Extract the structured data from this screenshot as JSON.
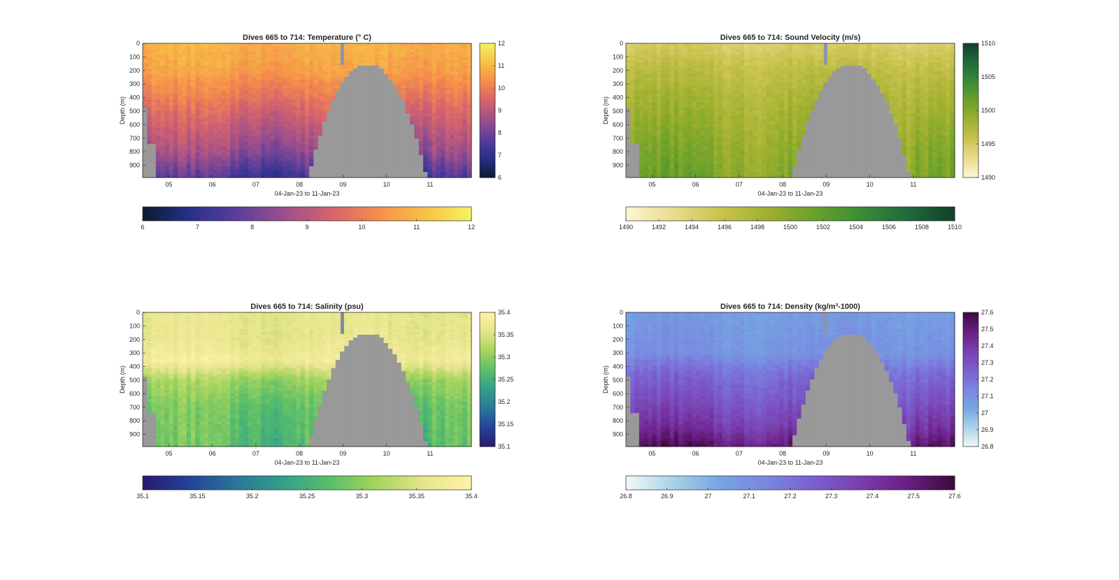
{
  "figure": {
    "background": "#ffffff",
    "bathymetry_color": "#999999"
  },
  "chart_data": [
    {
      "type": "heatmap",
      "variable": "temperature",
      "title": "Dives 665 to 714: Temperature (° C)",
      "xlabel": "04-Jan-23 to 11-Jan-23",
      "ylabel": "Depth (m)",
      "x_range_days": [
        4.4,
        11.95
      ],
      "x_ticks": [
        "05",
        "06",
        "07",
        "08",
        "09",
        "10",
        "11"
      ],
      "y_range_m": [
        0,
        990
      ],
      "y_ticks": [
        "0",
        "100",
        "200",
        "300",
        "400",
        "500",
        "600",
        "700",
        "800",
        "900"
      ],
      "colorbar_right": {
        "range": [
          6,
          12
        ],
        "ticks": [
          "6",
          "7",
          "8",
          "9",
          "10",
          "11",
          "12"
        ]
      },
      "colorbar_bottom": {
        "range": [
          6,
          12
        ],
        "ticks": [
          "6",
          "7",
          "8",
          "9",
          "10",
          "11",
          "12"
        ]
      },
      "colormap": [
        "#0a1c2e",
        "#28308a",
        "#5a3d9c",
        "#9c4f8c",
        "#d4626e",
        "#f58e4a",
        "#f7c046",
        "#f4f462"
      ],
      "profile": [
        {
          "depth": 0,
          "value": 10.9
        },
        {
          "depth": 200,
          "value": 10.6
        },
        {
          "depth": 400,
          "value": 9.9
        },
        {
          "depth": 600,
          "value": 9.2
        },
        {
          "depth": 800,
          "value": 8.5
        },
        {
          "depth": 990,
          "value": 7.4
        }
      ]
    },
    {
      "type": "heatmap",
      "variable": "sound_velocity",
      "title": "Dives 665 to 714: Sound Velocity (m/s)",
      "xlabel": "04-Jan-23 to 11-Jan-23",
      "ylabel": "Depth (m)",
      "x_range_days": [
        4.4,
        11.95
      ],
      "x_ticks": [
        "05",
        "06",
        "07",
        "08",
        "09",
        "10",
        "11"
      ],
      "y_range_m": [
        0,
        990
      ],
      "y_ticks": [
        "0",
        "100",
        "200",
        "300",
        "400",
        "500",
        "600",
        "700",
        "800",
        "900"
      ],
      "colorbar_right": {
        "range": [
          1490,
          1510
        ],
        "ticks": [
          "1490",
          "1495",
          "1500",
          "1505",
          "1510"
        ]
      },
      "colorbar_bottom": {
        "range": [
          1490,
          1510
        ],
        "ticks": [
          "1490",
          "1492",
          "1494",
          "1496",
          "1498",
          "1500",
          "1502",
          "1504",
          "1506",
          "1508",
          "1510"
        ]
      },
      "colormap": [
        "#fbf7d4",
        "#e9dc8e",
        "#c9c34e",
        "#9fb02e",
        "#6ba12a",
        "#3a8c35",
        "#1f6b3b",
        "#143f2a"
      ],
      "profile": [
        {
          "depth": 0,
          "value": 1494.5
        },
        {
          "depth": 200,
          "value": 1496.5
        },
        {
          "depth": 400,
          "value": 1497.8
        },
        {
          "depth": 600,
          "value": 1498.8
        },
        {
          "depth": 800,
          "value": 1499.8
        },
        {
          "depth": 990,
          "value": 1500.5
        }
      ]
    },
    {
      "type": "heatmap",
      "variable": "salinity",
      "title": "Dives 665 to 714: Salinity (psu)",
      "xlabel": "04-Jan-23 to 11-Jan-23",
      "ylabel": "Depth (m)",
      "x_range_days": [
        4.4,
        11.95
      ],
      "x_ticks": [
        "05",
        "06",
        "07",
        "08",
        "09",
        "10",
        "11"
      ],
      "y_range_m": [
        0,
        990
      ],
      "y_ticks": [
        "0",
        "100",
        "200",
        "300",
        "400",
        "500",
        "600",
        "700",
        "800",
        "900"
      ],
      "colorbar_right": {
        "range": [
          35.1,
          35.4
        ],
        "ticks": [
          "35.1",
          "35.15",
          "35.2",
          "35.25",
          "35.3",
          "35.35",
          "35.4"
        ]
      },
      "colorbar_bottom": {
        "range": [
          35.1,
          35.4
        ],
        "ticks": [
          "35.1",
          "35.15",
          "35.2",
          "35.25",
          "35.3",
          "35.35",
          "35.4"
        ]
      },
      "colormap": [
        "#2a1a6e",
        "#23449a",
        "#2b7698",
        "#33a08a",
        "#5cbf68",
        "#a7d55e",
        "#e7e58c",
        "#fdf2a8"
      ],
      "profile": [
        {
          "depth": 0,
          "value": 35.36
        },
        {
          "depth": 200,
          "value": 35.36
        },
        {
          "depth": 350,
          "value": 35.38
        },
        {
          "depth": 500,
          "value": 35.31
        },
        {
          "depth": 700,
          "value": 35.28
        },
        {
          "depth": 990,
          "value": 35.27
        }
      ]
    },
    {
      "type": "heatmap",
      "variable": "density",
      "title": "Dives 665 to 714: Density (kg/m³-1000)",
      "xlabel": "04-Jan-23 to 11-Jan-23",
      "ylabel": "Depth (m)",
      "x_range_days": [
        4.4,
        11.95
      ],
      "x_ticks": [
        "05",
        "06",
        "07",
        "08",
        "09",
        "10",
        "11"
      ],
      "y_range_m": [
        0,
        990
      ],
      "y_ticks": [
        "0",
        "100",
        "200",
        "300",
        "400",
        "500",
        "600",
        "700",
        "800",
        "900"
      ],
      "colorbar_right": {
        "range": [
          26.8,
          27.6
        ],
        "ticks": [
          "26.8",
          "26.9",
          "27",
          "27.1",
          "27.2",
          "27.3",
          "27.4",
          "27.5",
          "27.6"
        ]
      },
      "colorbar_bottom": {
        "range": [
          26.8,
          27.6
        ],
        "ticks": [
          "26.8",
          "26.9",
          "27",
          "27.1",
          "27.2",
          "27.3",
          "27.4",
          "27.5",
          "27.6"
        ]
      },
      "colormap": [
        "#f2f8f8",
        "#a9d2e8",
        "#75a5e2",
        "#7a86e0",
        "#7b5fd0",
        "#7a3fae",
        "#6a1e84",
        "#3a0a3a"
      ],
      "profile": [
        {
          "depth": 0,
          "value": 27.06
        },
        {
          "depth": 300,
          "value": 27.1
        },
        {
          "depth": 450,
          "value": 27.22
        },
        {
          "depth": 650,
          "value": 27.3
        },
        {
          "depth": 850,
          "value": 27.4
        },
        {
          "depth": 990,
          "value": 27.52
        }
      ]
    }
  ]
}
